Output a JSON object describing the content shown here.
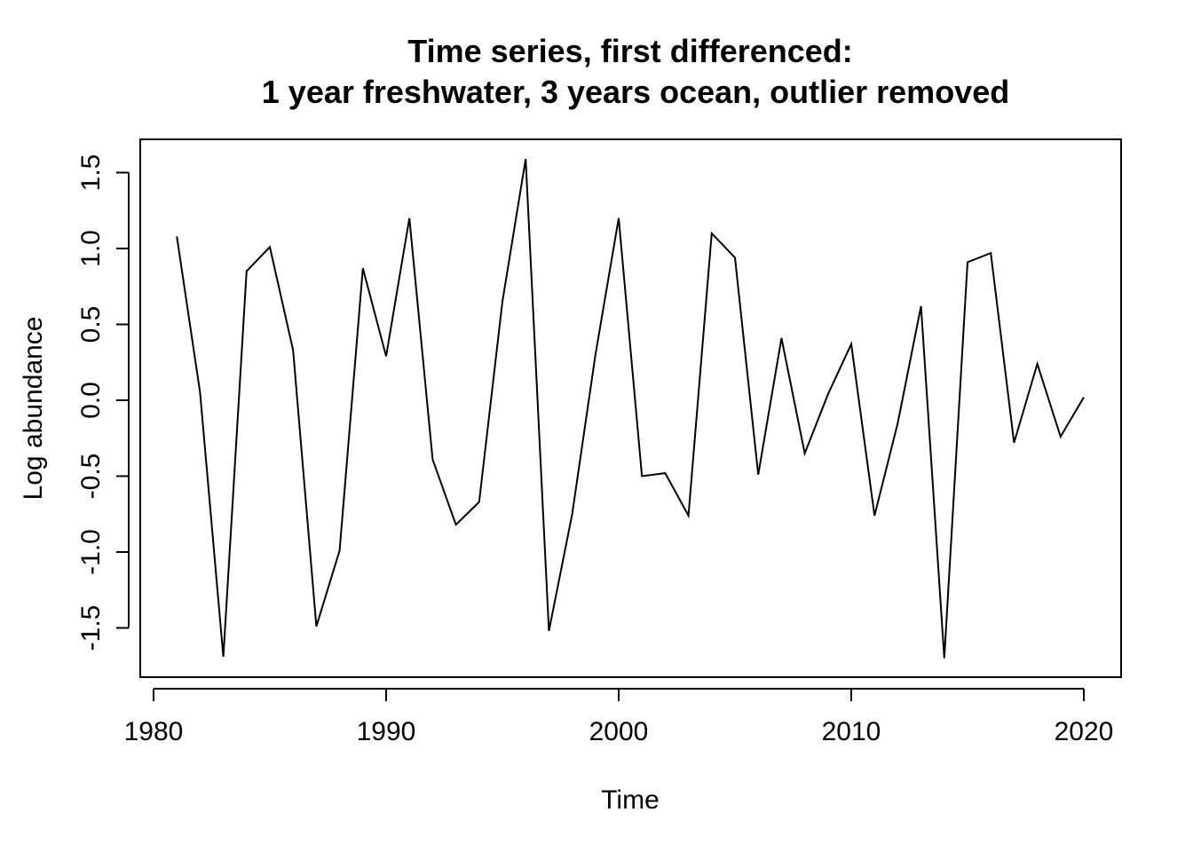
{
  "chart_data": {
    "type": "line",
    "title_line1": "Time series, first differenced:",
    "title_line2": "1 year freshwater, 3 years ocean, outlier removed",
    "xlabel": "Time",
    "ylabel": "Log abundance",
    "xlim": [
      1980,
      2020
    ],
    "ylim": [
      -1.7,
      1.6
    ],
    "x_ticks": [
      1980,
      1990,
      2000,
      2010,
      2020
    ],
    "x_tick_labels": [
      "1980",
      "1990",
      "2000",
      "2010",
      "2020"
    ],
    "y_ticks": [
      -1.5,
      -1.0,
      -0.5,
      0.0,
      0.5,
      1.0,
      1.5
    ],
    "y_tick_labels": [
      "-1.5",
      "-1.0",
      "-0.5",
      "0.0",
      "0.5",
      "1.0",
      "1.5"
    ],
    "grid": false,
    "line_color": "#000000",
    "x": [
      1981,
      1982,
      1983,
      1984,
      1985,
      1986,
      1987,
      1988,
      1989,
      1990,
      1991,
      1992,
      1993,
      1994,
      1995,
      1996,
      1997,
      1998,
      1999,
      2000,
      2001,
      2002,
      2003,
      2004,
      2005,
      2006,
      2007,
      2008,
      2009,
      2010,
      2011,
      2012,
      2013,
      2014,
      2015,
      2016,
      2017,
      2018,
      2019,
      2020
    ],
    "values": [
      1.08,
      0.05,
      -1.69,
      0.85,
      1.01,
      0.33,
      -1.49,
      -0.99,
      0.87,
      0.29,
      1.2,
      -0.39,
      -0.82,
      -0.67,
      0.65,
      1.59,
      -1.52,
      -0.75,
      0.3,
      1.2,
      -0.5,
      -0.48,
      -0.76,
      1.1,
      0.94,
      -0.49,
      0.41,
      -0.35,
      0.04,
      0.37,
      -0.76,
      -0.15,
      0.62,
      -1.7,
      0.91,
      0.97,
      -0.28,
      0.24,
      -0.24,
      0.02
    ]
  }
}
